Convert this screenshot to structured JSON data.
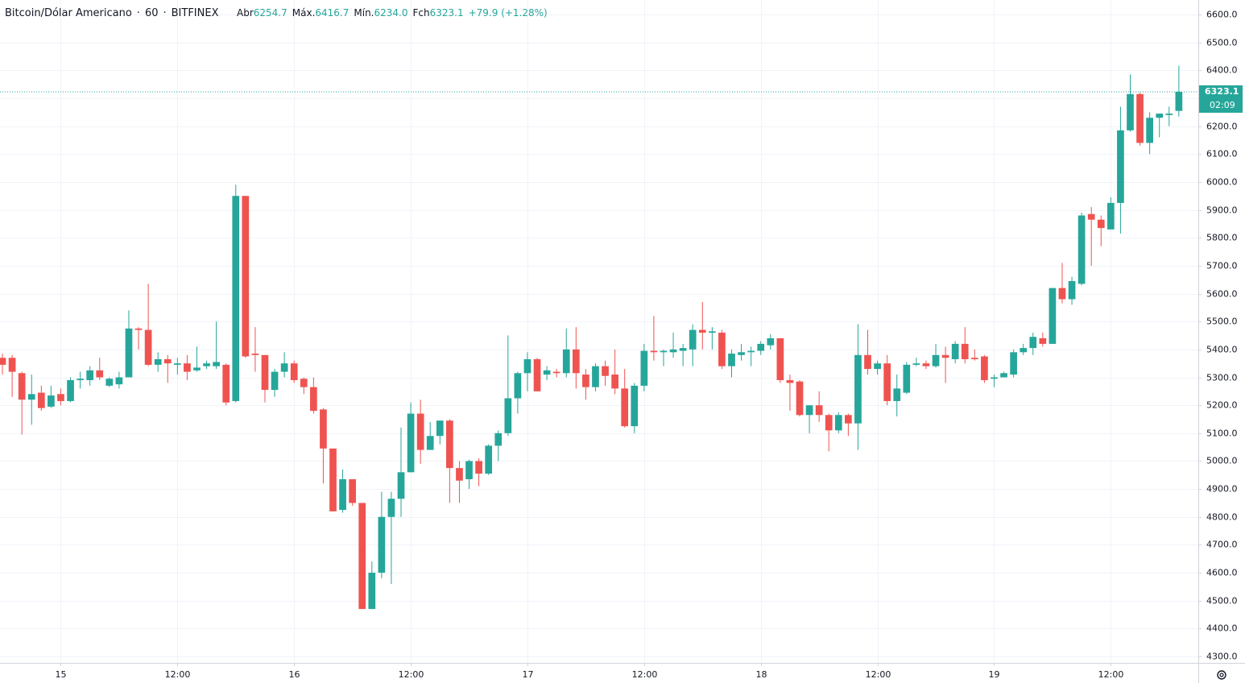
{
  "header": {
    "symbol": "Bitcoin/Dólar Americano",
    "interval": "60",
    "exchange": "BITFINEX",
    "open_label": "Abr",
    "open": "6254.7",
    "high_label": "Máx.",
    "high": "6416.7",
    "low_label": "Mín.",
    "low": "6234.0",
    "close_label": "Fch",
    "close": "6323.1",
    "change": "+79.9 (+1.28%)",
    "last_price_label": "6323.1",
    "countdown": "02:09"
  },
  "chart_data": {
    "type": "candlestick",
    "up_color": "#26a69a",
    "down_color": "#ef5350",
    "grid": true,
    "xlim": [
      -0.25,
      123
    ],
    "ylim": [
      4277,
      6652
    ],
    "xticks": [
      {
        "value": 6,
        "label": "15"
      },
      {
        "value": 18,
        "label": "12:00"
      },
      {
        "value": 30,
        "label": "16"
      },
      {
        "value": 42,
        "label": "12:00"
      },
      {
        "value": 54,
        "label": "17"
      },
      {
        "value": 66,
        "label": "12:00"
      },
      {
        "value": 78,
        "label": "18"
      },
      {
        "value": 90,
        "label": "12:00"
      },
      {
        "value": 102,
        "label": "19"
      },
      {
        "value": 114,
        "label": "12:00"
      }
    ],
    "yticks": [
      {
        "value": 4300,
        "label": "4300.0"
      },
      {
        "value": 4400,
        "label": "4400.0"
      },
      {
        "value": 4500,
        "label": "4500.0"
      },
      {
        "value": 4600,
        "label": "4600.0"
      },
      {
        "value": 4700,
        "label": "4700.0"
      },
      {
        "value": 4800,
        "label": "4800.0"
      },
      {
        "value": 4900,
        "label": "4900.0"
      },
      {
        "value": 5000,
        "label": "5000.0"
      },
      {
        "value": 5100,
        "label": "5100.0"
      },
      {
        "value": 5200,
        "label": "5200.0"
      },
      {
        "value": 5300,
        "label": "5300.0"
      },
      {
        "value": 5400,
        "label": "5400.0"
      },
      {
        "value": 5500,
        "label": "5500.0"
      },
      {
        "value": 5600,
        "label": "5600.0"
      },
      {
        "value": 5700,
        "label": "5700.0"
      },
      {
        "value": 5800,
        "label": "5800.0"
      },
      {
        "value": 5900,
        "label": "5900.0"
      },
      {
        "value": 6000,
        "label": "6000.0"
      },
      {
        "value": 6100,
        "label": "6100.0"
      },
      {
        "value": 6200,
        "label": "6200.0"
      },
      {
        "value": 6300,
        "label": "6300.0"
      },
      {
        "value": 6400,
        "label": "6400.0"
      },
      {
        "value": 6500,
        "label": "6500.0"
      },
      {
        "value": 6600,
        "label": "6600.0"
      }
    ],
    "x": [
      0,
      1,
      2,
      3,
      4,
      5,
      6,
      7,
      8,
      9,
      10,
      11,
      12,
      13,
      14,
      15,
      16,
      17,
      18,
      19,
      20,
      21,
      22,
      23,
      24,
      25,
      26,
      27,
      28,
      29,
      30,
      31,
      32,
      33,
      34,
      35,
      36,
      37,
      38,
      39,
      40,
      41,
      42,
      43,
      44,
      45,
      46,
      47,
      48,
      49,
      50,
      51,
      52,
      53,
      54,
      55,
      56,
      57,
      58,
      59,
      60,
      61,
      62,
      63,
      64,
      65,
      66,
      67,
      68,
      69,
      70,
      71,
      72,
      73,
      74,
      75,
      76,
      77,
      78,
      79,
      80,
      81,
      82,
      83,
      84,
      85,
      86,
      87,
      88,
      89,
      90,
      91,
      92,
      93,
      94,
      95,
      96,
      97,
      98,
      99,
      100,
      101,
      102,
      103,
      104,
      105,
      106,
      107,
      108,
      109,
      110,
      111,
      112,
      113,
      114,
      115,
      116,
      117,
      118,
      119,
      120,
      121
    ],
    "candles": [
      {
        "open": 5370,
        "high": 5385,
        "low": 5310,
        "close": 5345
      },
      {
        "open": 5370,
        "high": 5380,
        "low": 5230,
        "close": 5320
      },
      {
        "open": 5315,
        "high": 5320,
        "low": 5095,
        "close": 5220
      },
      {
        "open": 5220,
        "high": 5310,
        "low": 5130,
        "close": 5240
      },
      {
        "open": 5245,
        "high": 5270,
        "low": 5180,
        "close": 5190
      },
      {
        "open": 5195,
        "high": 5270,
        "low": 5190,
        "close": 5235
      },
      {
        "open": 5240,
        "high": 5260,
        "low": 5200,
        "close": 5215
      },
      {
        "open": 5215,
        "high": 5300,
        "low": 5210,
        "close": 5290
      },
      {
        "open": 5290,
        "high": 5320,
        "low": 5260,
        "close": 5295
      },
      {
        "open": 5290,
        "high": 5340,
        "low": 5270,
        "close": 5325
      },
      {
        "open": 5325,
        "high": 5370,
        "low": 5290,
        "close": 5300
      },
      {
        "open": 5270,
        "high": 5300,
        "low": 5265,
        "close": 5295
      },
      {
        "open": 5275,
        "high": 5320,
        "low": 5260,
        "close": 5300
      },
      {
        "open": 5300,
        "high": 5540,
        "low": 5300,
        "close": 5475
      },
      {
        "open": 5475,
        "high": 5480,
        "low": 5400,
        "close": 5470
      },
      {
        "open": 5470,
        "high": 5635,
        "low": 5340,
        "close": 5345
      },
      {
        "open": 5345,
        "high": 5390,
        "low": 5320,
        "close": 5365
      },
      {
        "open": 5365,
        "high": 5380,
        "low": 5280,
        "close": 5350
      },
      {
        "open": 5345,
        "high": 5370,
        "low": 5310,
        "close": 5350
      },
      {
        "open": 5350,
        "high": 5380,
        "low": 5290,
        "close": 5320
      },
      {
        "open": 5325,
        "high": 5410,
        "low": 5320,
        "close": 5335
      },
      {
        "open": 5340,
        "high": 5360,
        "low": 5330,
        "close": 5350
      },
      {
        "open": 5340,
        "high": 5500,
        "low": 5330,
        "close": 5355
      },
      {
        "open": 5345,
        "high": 5350,
        "low": 5200,
        "close": 5210
      },
      {
        "open": 5215,
        "high": 5990,
        "low": 5210,
        "close": 5950
      },
      {
        "open": 5950,
        "high": 5950,
        "low": 5370,
        "close": 5375
      },
      {
        "open": 5385,
        "high": 5480,
        "low": 5320,
        "close": 5380
      },
      {
        "open": 5380,
        "high": 5380,
        "low": 5210,
        "close": 5255
      },
      {
        "open": 5255,
        "high": 5330,
        "low": 5230,
        "close": 5320
      },
      {
        "open": 5320,
        "high": 5390,
        "low": 5300,
        "close": 5350
      },
      {
        "open": 5350,
        "high": 5360,
        "low": 5280,
        "close": 5290
      },
      {
        "open": 5295,
        "high": 5300,
        "low": 5240,
        "close": 5265
      },
      {
        "open": 5265,
        "high": 5300,
        "low": 5170,
        "close": 5180
      },
      {
        "open": 5185,
        "high": 5190,
        "low": 4920,
        "close": 5045
      },
      {
        "open": 5045,
        "high": 5045,
        "low": 4820,
        "close": 4820
      },
      {
        "open": 4825,
        "high": 4970,
        "low": 4815,
        "close": 4935
      },
      {
        "open": 4935,
        "high": 4935,
        "low": 4840,
        "close": 4850
      },
      {
        "open": 4850,
        "high": 4850,
        "low": 4470,
        "close": 4470
      },
      {
        "open": 4470,
        "high": 4640,
        "low": 4470,
        "close": 4600
      },
      {
        "open": 4600,
        "high": 4890,
        "low": 4580,
        "close": 4800
      },
      {
        "open": 4800,
        "high": 4890,
        "low": 4560,
        "close": 4865
      },
      {
        "open": 4865,
        "high": 5120,
        "low": 4800,
        "close": 4960
      },
      {
        "open": 4960,
        "high": 5210,
        "low": 4960,
        "close": 5170
      },
      {
        "open": 5170,
        "high": 5220,
        "low": 4990,
        "close": 5040
      },
      {
        "open": 5040,
        "high": 5140,
        "low": 5040,
        "close": 5090
      },
      {
        "open": 5090,
        "high": 5145,
        "low": 5060,
        "close": 5145
      },
      {
        "open": 5145,
        "high": 5150,
        "low": 4850,
        "close": 4975
      },
      {
        "open": 4975,
        "high": 5000,
        "low": 4850,
        "close": 4930
      },
      {
        "open": 4935,
        "high": 5005,
        "low": 4900,
        "close": 5000
      },
      {
        "open": 5000,
        "high": 5010,
        "low": 4910,
        "close": 4955
      },
      {
        "open": 4955,
        "high": 5060,
        "low": 4950,
        "close": 5055
      },
      {
        "open": 5055,
        "high": 5110,
        "low": 5000,
        "close": 5100
      },
      {
        "open": 5100,
        "high": 5450,
        "low": 5090,
        "close": 5225
      },
      {
        "open": 5225,
        "high": 5320,
        "low": 5170,
        "close": 5315
      },
      {
        "open": 5315,
        "high": 5390,
        "low": 5250,
        "close": 5365
      },
      {
        "open": 5365,
        "high": 5370,
        "low": 5250,
        "close": 5250
      },
      {
        "open": 5310,
        "high": 5340,
        "low": 5290,
        "close": 5325
      },
      {
        "open": 5320,
        "high": 5330,
        "low": 5300,
        "close": 5315
      },
      {
        "open": 5315,
        "high": 5475,
        "low": 5300,
        "close": 5400
      },
      {
        "open": 5400,
        "high": 5480,
        "low": 5260,
        "close": 5315
      },
      {
        "open": 5310,
        "high": 5330,
        "low": 5220,
        "close": 5265
      },
      {
        "open": 5265,
        "high": 5350,
        "low": 5250,
        "close": 5340
      },
      {
        "open": 5340,
        "high": 5360,
        "low": 5270,
        "close": 5305
      },
      {
        "open": 5310,
        "high": 5400,
        "low": 5240,
        "close": 5260
      },
      {
        "open": 5260,
        "high": 5330,
        "low": 5120,
        "close": 5125
      },
      {
        "open": 5125,
        "high": 5280,
        "low": 5100,
        "close": 5270
      },
      {
        "open": 5270,
        "high": 5420,
        "low": 5250,
        "close": 5395
      },
      {
        "open": 5395,
        "high": 5520,
        "low": 5360,
        "close": 5390
      },
      {
        "open": 5390,
        "high": 5400,
        "low": 5340,
        "close": 5395
      },
      {
        "open": 5390,
        "high": 5460,
        "low": 5370,
        "close": 5400
      },
      {
        "open": 5395,
        "high": 5420,
        "low": 5340,
        "close": 5405
      },
      {
        "open": 5400,
        "high": 5490,
        "low": 5340,
        "close": 5470
      },
      {
        "open": 5470,
        "high": 5570,
        "low": 5400,
        "close": 5460
      },
      {
        "open": 5460,
        "high": 5480,
        "low": 5400,
        "close": 5465
      },
      {
        "open": 5460,
        "high": 5470,
        "low": 5330,
        "close": 5340
      },
      {
        "open": 5340,
        "high": 5400,
        "low": 5300,
        "close": 5385
      },
      {
        "open": 5380,
        "high": 5420,
        "low": 5360,
        "close": 5390
      },
      {
        "open": 5390,
        "high": 5410,
        "low": 5340,
        "close": 5395
      },
      {
        "open": 5395,
        "high": 5430,
        "low": 5380,
        "close": 5420
      },
      {
        "open": 5415,
        "high": 5455,
        "low": 5400,
        "close": 5440
      },
      {
        "open": 5440,
        "high": 5440,
        "low": 5280,
        "close": 5290
      },
      {
        "open": 5290,
        "high": 5310,
        "low": 5180,
        "close": 5280
      },
      {
        "open": 5285,
        "high": 5290,
        "low": 5160,
        "close": 5165
      },
      {
        "open": 5165,
        "high": 5200,
        "low": 5100,
        "close": 5200
      },
      {
        "open": 5200,
        "high": 5250,
        "low": 5140,
        "close": 5165
      },
      {
        "open": 5165,
        "high": 5170,
        "low": 5035,
        "close": 5110
      },
      {
        "open": 5110,
        "high": 5175,
        "low": 5100,
        "close": 5165
      },
      {
        "open": 5165,
        "high": 5170,
        "low": 5090,
        "close": 5135
      },
      {
        "open": 5135,
        "high": 5490,
        "low": 5040,
        "close": 5380
      },
      {
        "open": 5380,
        "high": 5470,
        "low": 5310,
        "close": 5330
      },
      {
        "open": 5330,
        "high": 5360,
        "low": 5310,
        "close": 5350
      },
      {
        "open": 5350,
        "high": 5380,
        "low": 5200,
        "close": 5215
      },
      {
        "open": 5215,
        "high": 5310,
        "low": 5160,
        "close": 5260
      },
      {
        "open": 5245,
        "high": 5355,
        "low": 5240,
        "close": 5345
      },
      {
        "open": 5345,
        "high": 5370,
        "low": 5340,
        "close": 5350
      },
      {
        "open": 5350,
        "high": 5360,
        "low": 5330,
        "close": 5340
      },
      {
        "open": 5340,
        "high": 5420,
        "low": 5335,
        "close": 5380
      },
      {
        "open": 5380,
        "high": 5410,
        "low": 5280,
        "close": 5370
      },
      {
        "open": 5365,
        "high": 5430,
        "low": 5350,
        "close": 5420
      },
      {
        "open": 5420,
        "high": 5480,
        "low": 5350,
        "close": 5365
      },
      {
        "open": 5370,
        "high": 5400,
        "low": 5360,
        "close": 5365
      },
      {
        "open": 5375,
        "high": 5380,
        "low": 5280,
        "close": 5290
      },
      {
        "open": 5295,
        "high": 5310,
        "low": 5265,
        "close": 5300
      },
      {
        "open": 5300,
        "high": 5320,
        "low": 5300,
        "close": 5315
      },
      {
        "open": 5310,
        "high": 5400,
        "low": 5300,
        "close": 5390
      },
      {
        "open": 5390,
        "high": 5420,
        "low": 5380,
        "close": 5405
      },
      {
        "open": 5405,
        "high": 5460,
        "low": 5380,
        "close": 5445
      },
      {
        "open": 5440,
        "high": 5460,
        "low": 5410,
        "close": 5420
      },
      {
        "open": 5420,
        "high": 5620,
        "low": 5420,
        "close": 5620
      },
      {
        "open": 5620,
        "high": 5710,
        "low": 5565,
        "close": 5580
      },
      {
        "open": 5580,
        "high": 5660,
        "low": 5560,
        "close": 5645
      },
      {
        "open": 5635,
        "high": 5890,
        "low": 5630,
        "close": 5880
      },
      {
        "open": 5885,
        "high": 5910,
        "low": 5700,
        "close": 5865
      },
      {
        "open": 5865,
        "high": 5880,
        "low": 5770,
        "close": 5835
      },
      {
        "open": 5830,
        "high": 5945,
        "low": 5830,
        "close": 5925
      },
      {
        "open": 5925,
        "high": 6270,
        "low": 5815,
        "close": 6185
      },
      {
        "open": 6185,
        "high": 6385,
        "low": 6180,
        "close": 6315
      },
      {
        "open": 6315,
        "high": 6320,
        "low": 6130,
        "close": 6140
      },
      {
        "open": 6140,
        "high": 6250,
        "low": 6100,
        "close": 6230
      },
      {
        "open": 6230,
        "high": 6245,
        "low": 6160,
        "close": 6245
      },
      {
        "open": 6240,
        "high": 6270,
        "low": 6200,
        "close": 6245
      },
      {
        "open": 6254.7,
        "high": 6416.7,
        "low": 6234,
        "close": 6323.1
      }
    ]
  }
}
